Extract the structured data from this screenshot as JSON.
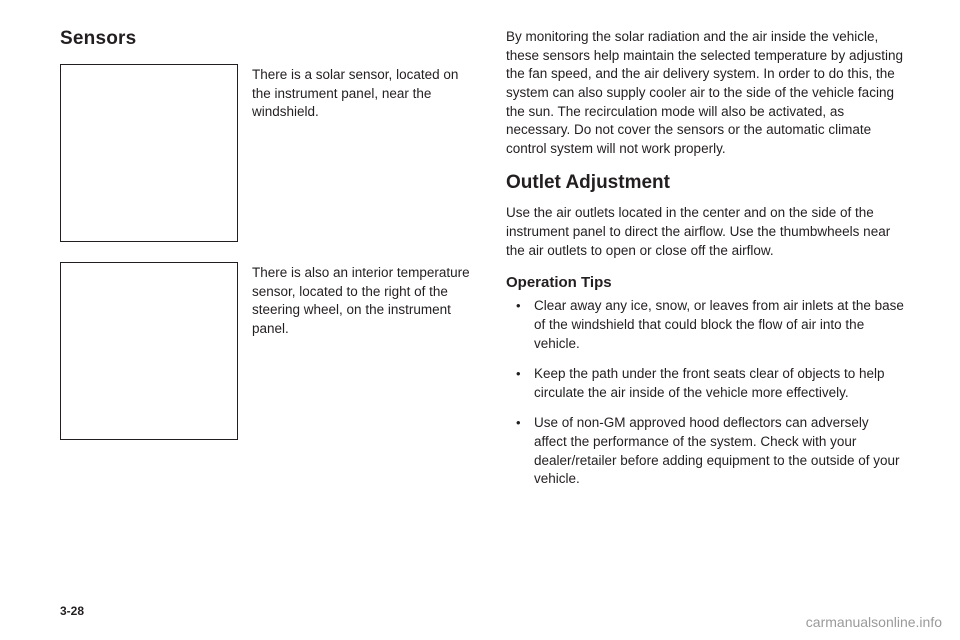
{
  "left": {
    "heading": "Sensors",
    "fig1_caption": "There is a solar sensor, located on the instrument panel, near the windshield.",
    "fig2_caption": "There is also an interior temperature sensor, located to the right of the steering wheel, on the instrument panel."
  },
  "right": {
    "intro": "By monitoring the solar radiation and the air inside the vehicle, these sensors help maintain the selected temperature by adjusting the fan speed, and the air delivery system. In order to do this, the system can also supply cooler air to the side of the vehicle facing the sun. The recirculation mode will also be activated, as necessary. Do not cover the sensors or the automatic climate control system will not work properly.",
    "heading2": "Outlet Adjustment",
    "outlet_body": "Use the air outlets located in the center and on the side of the instrument panel to direct the airflow. Use the thumbwheels near the air outlets to open or close off the airflow.",
    "ops_heading": "Operation Tips",
    "tips": [
      "Clear away any ice, snow, or leaves from air inlets at the base of the windshield that could block the flow of air into the vehicle.",
      "Keep the path under the front seats clear of objects to help circulate the air inside of the vehicle more effectively.",
      "Use of non-GM approved hood deflectors can adversely affect the performance of the system. Check with your dealer/retailer before adding equipment to the outside of your vehicle."
    ]
  },
  "page_number": "3-28",
  "watermark": "carmanualsonline.info"
}
